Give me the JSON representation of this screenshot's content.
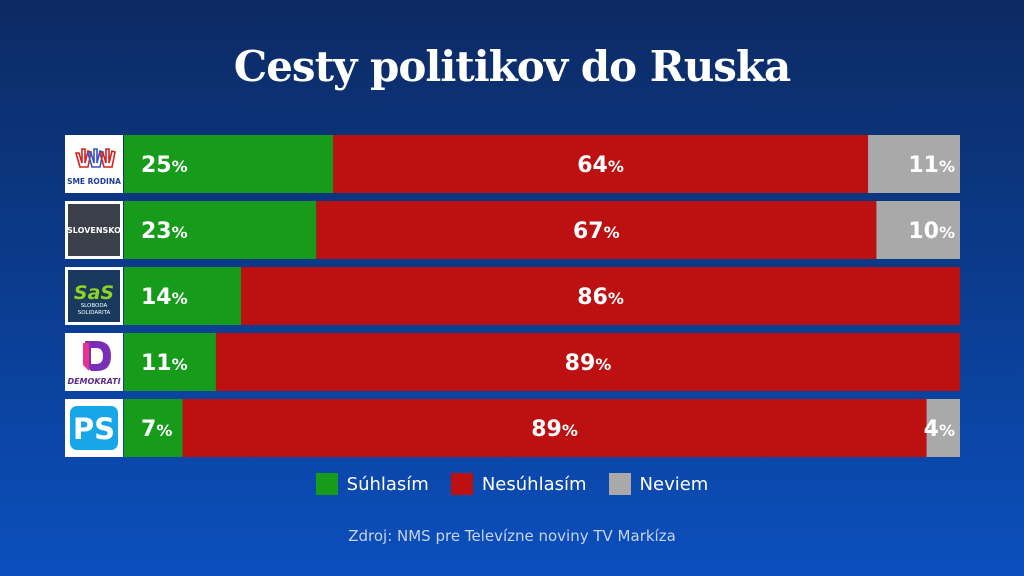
{
  "title": "Cesty politikov do Ruska",
  "source": "Zdroj: NMS pre Televízne noviny TV Markíza",
  "colors": {
    "agree": "#169b1b",
    "disagree": "#bd1111",
    "dontknow": "#a9a9a9"
  },
  "legend": [
    {
      "label": "Súhlasím",
      "color": "#169b1b"
    },
    {
      "label": "Nesúhlasím",
      "color": "#bd1111"
    },
    {
      "label": "Neviem",
      "color": "#a9a9a9"
    }
  ],
  "logos": [
    {
      "name": "sme-rodina-logo",
      "text": "SME RODINA"
    },
    {
      "name": "slovensko-logo",
      "text": "SLOVENSKO"
    },
    {
      "name": "sas-logo",
      "text": "SaS",
      "subtext": "SLOBODA SOLIDARITA"
    },
    {
      "name": "demokrati-logo",
      "text": "DEMOKRATI"
    },
    {
      "name": "ps-logo",
      "text": "PS"
    }
  ],
  "chart_data": {
    "type": "bar",
    "orientation": "horizontal",
    "stacked": true,
    "title": "Cesty politikov do Ruska",
    "categories": [
      "SME RODINA",
      "SLOVENSKO",
      "SaS",
      "DEMOKRATI",
      "PS"
    ],
    "series": [
      {
        "name": "Súhlasím",
        "values": [
          25,
          23,
          14,
          11,
          7
        ]
      },
      {
        "name": "Nesúhlasím",
        "values": [
          64,
          67,
          86,
          89,
          89
        ]
      },
      {
        "name": "Neviem",
        "values": [
          11,
          10,
          0,
          0,
          4
        ]
      }
    ],
    "unit": "%",
    "legend_position": "bottom-center"
  }
}
